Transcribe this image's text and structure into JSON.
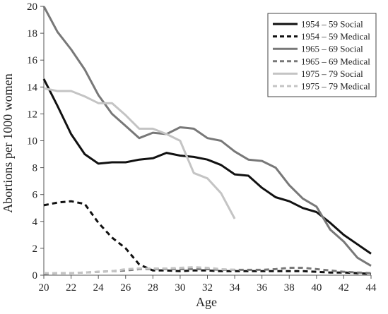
{
  "chart_data": {
    "type": "line",
    "title": "",
    "xlabel": "Age",
    "ylabel": "Abortions per 1000 women",
    "xlim": [
      20,
      44
    ],
    "ylim": [
      0,
      20
    ],
    "x_ticks": [
      20,
      22,
      24,
      26,
      28,
      30,
      32,
      34,
      36,
      38,
      40,
      42,
      44
    ],
    "y_ticks": [
      0,
      2,
      4,
      6,
      8,
      10,
      12,
      14,
      16,
      18,
      20
    ],
    "grid": false,
    "legend_position": "top-right",
    "series": [
      {
        "name": "1954 – 59 Social",
        "color": "#111111",
        "dash": "solid",
        "x": [
          20,
          21,
          22,
          23,
          24,
          25,
          26,
          27,
          28,
          29,
          30,
          31,
          32,
          33,
          34,
          35,
          36,
          37,
          38,
          39,
          40,
          41,
          42,
          43,
          44
        ],
        "values": [
          14.6,
          12.6,
          10.5,
          9.0,
          8.3,
          8.4,
          8.4,
          8.6,
          8.7,
          9.1,
          8.9,
          8.8,
          8.6,
          8.2,
          7.5,
          7.4,
          6.5,
          5.8,
          5.5,
          5.0,
          4.7,
          3.9,
          3.0,
          2.3,
          1.6
        ]
      },
      {
        "name": "1954 – 59 Medical",
        "color": "#111111",
        "dash": "dashed",
        "x": [
          20,
          21,
          22,
          23,
          24,
          25,
          26,
          27,
          28,
          29,
          30,
          31,
          32,
          33,
          34,
          35,
          36,
          37,
          38,
          39,
          40,
          41,
          42,
          43,
          44
        ],
        "values": [
          5.2,
          5.4,
          5.5,
          5.3,
          3.9,
          2.8,
          2.0,
          0.8,
          0.35,
          0.35,
          0.3,
          0.35,
          0.35,
          0.3,
          0.3,
          0.3,
          0.3,
          0.3,
          0.3,
          0.3,
          0.25,
          0.2,
          0.2,
          0.15,
          0.1
        ]
      },
      {
        "name": "1965 – 69 Social",
        "color": "#787878",
        "dash": "solid",
        "x": [
          20,
          21,
          22,
          23,
          24,
          25,
          26,
          27,
          28,
          29,
          30,
          31,
          32,
          33,
          34,
          35,
          36,
          37,
          38,
          39,
          40,
          41,
          42,
          43,
          44
        ],
        "values": [
          20.0,
          18.1,
          16.8,
          15.3,
          13.4,
          12.0,
          11.1,
          10.2,
          10.6,
          10.5,
          11.0,
          10.9,
          10.2,
          10.0,
          9.2,
          8.6,
          8.5,
          8.0,
          6.7,
          5.7,
          5.1,
          3.4,
          2.5,
          1.3,
          0.7
        ]
      },
      {
        "name": "1965 – 69 Medical",
        "color": "#787878",
        "dash": "dashed",
        "x": [
          20,
          21,
          22,
          23,
          24,
          25,
          26,
          27,
          28,
          29,
          30,
          31,
          32,
          33,
          34,
          35,
          36,
          37,
          38,
          39,
          40,
          41,
          42,
          43,
          44
        ],
        "values": [
          0.1,
          0.15,
          0.15,
          0.2,
          0.25,
          0.3,
          0.35,
          0.45,
          0.45,
          0.45,
          0.45,
          0.45,
          0.45,
          0.4,
          0.4,
          0.4,
          0.4,
          0.45,
          0.55,
          0.55,
          0.45,
          0.35,
          0.25,
          0.2,
          0.15
        ]
      },
      {
        "name": "1975 – 79 Social",
        "color": "#c4c4c4",
        "dash": "solid",
        "x": [
          20,
          21,
          22,
          23,
          24,
          25,
          26,
          27,
          28,
          29,
          30,
          31,
          32,
          33,
          34
        ],
        "values": [
          13.9,
          13.7,
          13.7,
          13.3,
          12.8,
          12.8,
          11.9,
          10.9,
          10.9,
          10.5,
          10.0,
          7.6,
          7.2,
          6.1,
          4.2
        ]
      },
      {
        "name": "1975 – 79 Medical",
        "color": "#c4c4c4",
        "dash": "dashed",
        "x": [
          20,
          21,
          22,
          23,
          24,
          25,
          26,
          27,
          28,
          29,
          30,
          31,
          32,
          33,
          34
        ],
        "values": [
          0.15,
          0.15,
          0.15,
          0.2,
          0.25,
          0.3,
          0.45,
          0.5,
          0.5,
          0.5,
          0.55,
          0.6,
          0.55,
          0.45,
          0.4
        ]
      }
    ]
  }
}
